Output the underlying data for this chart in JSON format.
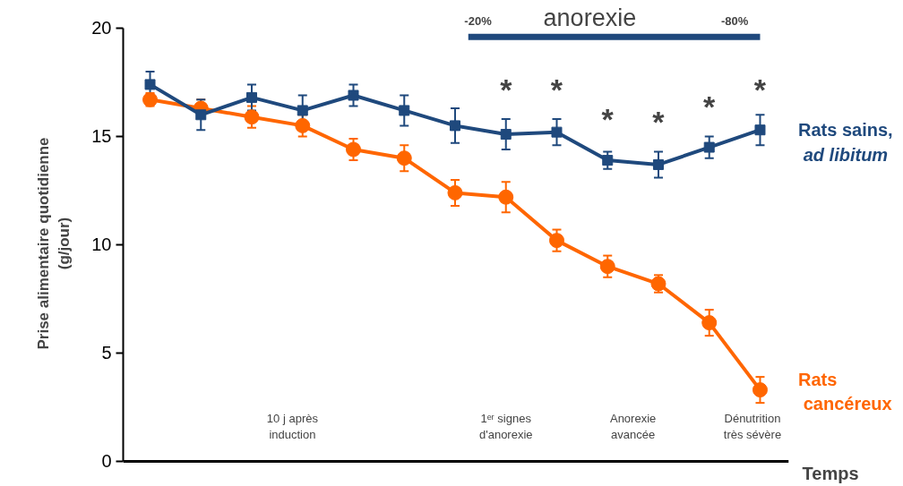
{
  "chart_data": {
    "type": "line",
    "xlabel": "Temps",
    "ylabel": "Prise alimentaire quotidienne\n(g/jour)",
    "categories": [
      null,
      null,
      null,
      null,
      null,
      null,
      null,
      null,
      null,
      null,
      null,
      null,
      null
    ],
    "series": [
      {
        "name": "Rats sains, ad libitum",
        "color": "#1f497d",
        "marker": "square",
        "values": [
          17.4,
          16.0,
          16.8,
          16.2,
          16.9,
          16.2,
          15.5,
          15.1,
          15.2,
          13.9,
          13.7,
          14.5,
          15.3
        ],
        "errors": [
          0.6,
          0.7,
          0.6,
          0.7,
          0.5,
          0.7,
          0.8,
          0.7,
          0.6,
          0.4,
          0.6,
          0.5,
          0.7
        ]
      },
      {
        "name": "Rats cancéreux",
        "color": "#ff6600",
        "marker": "circle",
        "values": [
          16.7,
          16.3,
          15.9,
          15.5,
          14.4,
          14.0,
          12.4,
          12.2,
          10.2,
          9.0,
          8.2,
          6.4,
          3.3
        ],
        "errors": [
          0.3,
          0.4,
          0.5,
          0.5,
          0.5,
          0.6,
          0.6,
          0.7,
          0.5,
          0.5,
          0.4,
          0.6,
          0.6
        ]
      }
    ],
    "ylim": [
      0,
      20
    ],
    "yticks": [
      0,
      5,
      10,
      15,
      20
    ],
    "tick_labels": "y",
    "grid": false,
    "line_style": "solid",
    "annotations": [
      "anorexie",
      "-20%",
      "-80%",
      "*",
      "*",
      "*",
      "*",
      "*",
      "*",
      "10 j après\ninduction",
      "1ᵉʳ signes\nd'anorexie",
      "Anorexie\navancée",
      "Dénutrition\ntrès sévère"
    ]
  }
}
